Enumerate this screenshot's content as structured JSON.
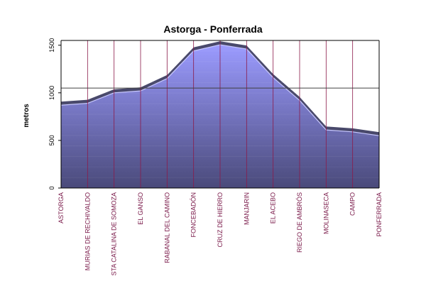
{
  "chart_data": {
    "type": "area",
    "title": "Astorga - Ponferrada",
    "xlabel": "",
    "ylabel": "metros",
    "ylim": [
      0,
      1550
    ],
    "yticks": [
      0,
      500,
      1000,
      1500
    ],
    "reference_line": 1050,
    "grid": "vertical lines at each category",
    "categories": [
      "ASTORGA",
      "MURIAS DE RECHIVALDO",
      "STA CATALINA DE SOMOZA",
      "EL GANSO",
      "RABANAL DEL CAMINO",
      "FONCEBADÓN",
      "CRUZ DE HIERRO",
      "MANJARIN",
      "EL ACEBO",
      "RIEGO DE AMBRÓS",
      "MOLINASECA",
      "CAMPO",
      "PONFERRADA"
    ],
    "values": [
      870,
      890,
      1000,
      1020,
      1150,
      1440,
      1505,
      1460,
      1160,
      920,
      610,
      590,
      550
    ],
    "colors": {
      "fill_top": "#9b9bff",
      "fill_bottom": "#4a4a7a",
      "ridge": "#3a3a5e",
      "vertical_lines": "#8b1a4a",
      "reference_line": "#404040",
      "tick_labels": "#7a1a4a"
    }
  }
}
